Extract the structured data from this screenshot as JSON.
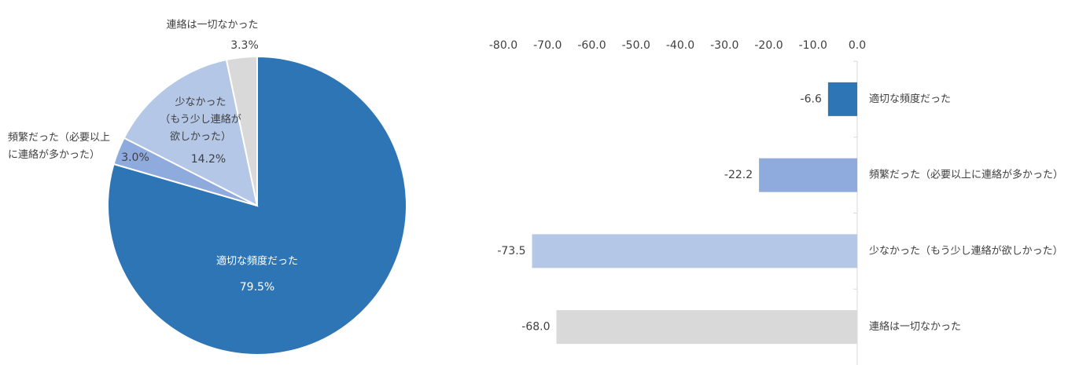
{
  "chart_data": [
    {
      "type": "pie",
      "categories": [
        "適切な頻度だった",
        "頻繁だった（必要以上\nに連絡が多かった）",
        "少なかった\n（もう少し連絡が\n欲しかった）",
        "連絡は一切なかった"
      ],
      "values": [
        79.5,
        3.0,
        14.2,
        3.3
      ],
      "value_labels": [
        "79.5%",
        "3.0%",
        "14.2%",
        "3.3%"
      ],
      "colors": [
        "#2e75b6",
        "#8faadc",
        "#b4c7e7",
        "#d9d9d9"
      ]
    },
    {
      "type": "hbar",
      "categories": [
        "適切な頻度だった",
        "頻繁だった（必要以上に連絡が多かった）",
        "少なかった（もう少し連絡が欲しかった）",
        "連絡は一切なかった"
      ],
      "values": [
        -6.6,
        -22.2,
        -73.5,
        -68.0
      ],
      "value_labels": [
        "-6.6",
        "-22.2",
        "-73.5",
        "-68.0"
      ],
      "colors": [
        "#2e75b6",
        "#8faadc",
        "#b4c7e7",
        "#d9d9d9"
      ],
      "xlim": [
        -80,
        0
      ],
      "xticks": [
        {
          "value": -80,
          "label": "-80.0"
        },
        {
          "value": -70,
          "label": "-70.0"
        },
        {
          "value": -60,
          "label": "-60.0"
        },
        {
          "value": -50,
          "label": "-50.0"
        },
        {
          "value": -40,
          "label": "-40.0"
        },
        {
          "value": -30,
          "label": "-30.0"
        },
        {
          "value": -20,
          "label": "-20.0"
        },
        {
          "value": -10,
          "label": "-10.0"
        },
        {
          "value": 0,
          "label": "0.0"
        }
      ]
    }
  ]
}
